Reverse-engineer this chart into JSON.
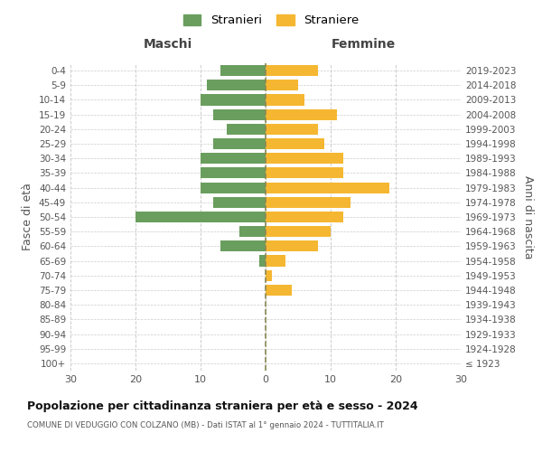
{
  "age_groups": [
    "100+",
    "95-99",
    "90-94",
    "85-89",
    "80-84",
    "75-79",
    "70-74",
    "65-69",
    "60-64",
    "55-59",
    "50-54",
    "45-49",
    "40-44",
    "35-39",
    "30-34",
    "25-29",
    "20-24",
    "15-19",
    "10-14",
    "5-9",
    "0-4"
  ],
  "birth_years": [
    "≤ 1923",
    "1924-1928",
    "1929-1933",
    "1934-1938",
    "1939-1943",
    "1944-1948",
    "1949-1953",
    "1954-1958",
    "1959-1963",
    "1964-1968",
    "1969-1973",
    "1974-1978",
    "1979-1983",
    "1984-1988",
    "1989-1993",
    "1994-1998",
    "1999-2003",
    "2004-2008",
    "2009-2013",
    "2014-2018",
    "2019-2023"
  ],
  "maschi": [
    0,
    0,
    0,
    0,
    0,
    0,
    0,
    1,
    7,
    4,
    20,
    8,
    10,
    10,
    10,
    8,
    6,
    8,
    10,
    9,
    7
  ],
  "femmine": [
    0,
    0,
    0,
    0,
    0,
    4,
    1,
    3,
    8,
    10,
    12,
    13,
    19,
    12,
    12,
    9,
    8,
    11,
    6,
    5,
    8
  ],
  "maschi_color": "#6a9e5e",
  "femmine_color": "#f5b731",
  "background_color": "#ffffff",
  "grid_color": "#cccccc",
  "title": "Popolazione per cittadinanza straniera per età e sesso - 2024",
  "subtitle": "COMUNE DI VEDUGGIO CON COLZANO (MB) - Dati ISTAT al 1° gennaio 2024 - TUTTITALIA.IT",
  "xlabel_left": "Maschi",
  "xlabel_right": "Femmine",
  "ylabel_left": "Fasce di età",
  "ylabel_right": "Anni di nascita",
  "legend_maschi": "Stranieri",
  "legend_femmine": "Straniere",
  "xlim": 30,
  "bar_height": 0.75
}
